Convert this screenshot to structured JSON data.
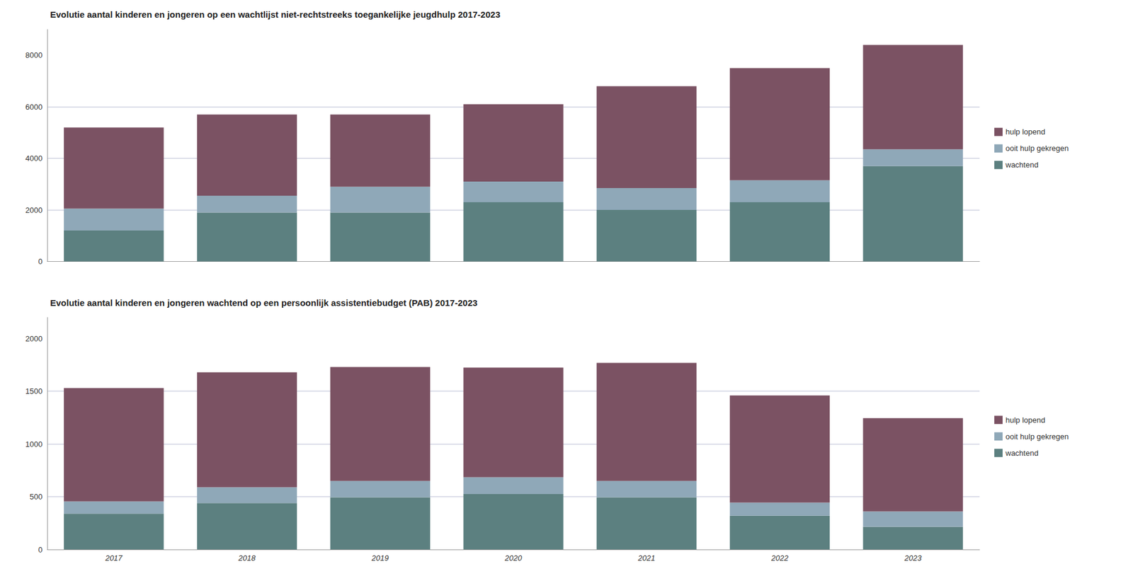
{
  "chart_data": [
    {
      "type": "bar",
      "title": "Evolutie aantal kinderen en jongeren op een wachtlijst niet-rechtstreeks toegankelijke jeugdhulp 2017-2023",
      "categories": [
        null,
        null,
        null,
        null,
        null,
        null,
        null
      ],
      "series": [
        {
          "name": "wachtend",
          "color": "#5C8080",
          "values": [
            1200,
            1900,
            1900,
            2300,
            2000,
            2300,
            3700
          ]
        },
        {
          "name": "ooit hulp gekregen",
          "color": "#8FA8B8",
          "values": [
            850,
            650,
            1000,
            800,
            850,
            850,
            650
          ]
        },
        {
          "name": "hulp lopend",
          "color": "#7B5263",
          "values": [
            3150,
            3150,
            2800,
            3000,
            3950,
            4350,
            4050
          ]
        }
      ],
      "stacked": true,
      "ylim": [
        0,
        9000
      ],
      "yticks": [
        0,
        2000,
        4000,
        6000,
        8000
      ],
      "grid": true,
      "legend": "right",
      "tick_labels": "y"
    },
    {
      "type": "bar",
      "title": "Evolutie aantal kinderen en jongeren wachtend op een persoonlijk assistentiebudget (PAB) 2017-2023",
      "categories": [
        "2017",
        "2018",
        "2019",
        "2020",
        "2021",
        "2022",
        "2023"
      ],
      "series": [
        {
          "name": "wachtend",
          "color": "#5C8080",
          "values": [
            340,
            440,
            495,
            525,
            495,
            320,
            215
          ]
        },
        {
          "name": "ooit hulp gekregen",
          "color": "#8FA8B8",
          "values": [
            115,
            150,
            155,
            160,
            155,
            125,
            145
          ]
        },
        {
          "name": "hulp lopend",
          "color": "#7B5263",
          "values": [
            1075,
            1090,
            1080,
            1040,
            1120,
            1015,
            885
          ]
        }
      ],
      "stacked": true,
      "ylim": [
        0,
        2200
      ],
      "yticks": [
        0,
        500,
        1000,
        1500,
        2000
      ],
      "grid": true,
      "legend": "right"
    }
  ]
}
